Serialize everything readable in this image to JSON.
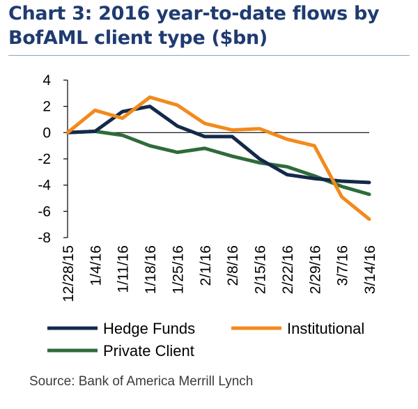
{
  "chart_data": {
    "type": "line",
    "title": "Chart 3: 2016 year-to-date flows by BofAML client type ($bn)",
    "categories": [
      "12/28/15",
      "1/4/16",
      "1/11/16",
      "1/18/16",
      "1/25/16",
      "2/1/16",
      "2/8/16",
      "2/15/16",
      "2/22/16",
      "2/29/16",
      "3/7/16",
      "3/14/16"
    ],
    "ylim": [
      -8,
      4
    ],
    "yticks": [
      "4",
      "2",
      "0",
      "-2",
      "-4",
      "-6",
      "-8"
    ],
    "grid": false,
    "legend_position": "bottom",
    "series": [
      {
        "name": "Hedge Funds",
        "color": "#13294b",
        "values": [
          0.0,
          0.1,
          1.6,
          2.0,
          0.5,
          -0.3,
          -0.3,
          -2.0,
          -3.2,
          -3.5,
          -3.7,
          -3.8
        ]
      },
      {
        "name": "Institutional",
        "color": "#f28a1c",
        "values": [
          0.0,
          1.7,
          1.1,
          2.7,
          2.1,
          0.7,
          0.2,
          0.3,
          -0.5,
          -1.0,
          -4.9,
          -6.6
        ]
      },
      {
        "name": "Private Client",
        "color": "#2f6b3a",
        "values": [
          0.0,
          0.1,
          -0.2,
          -1.0,
          -1.5,
          -1.2,
          -1.8,
          -2.3,
          -2.6,
          -3.3,
          -4.1,
          -4.7
        ]
      }
    ],
    "source": "Source: Bank of America Merrill Lynch"
  }
}
